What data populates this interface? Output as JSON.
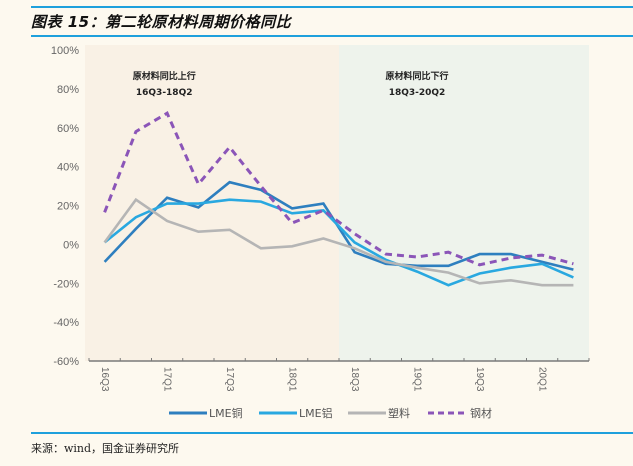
{
  "header": {
    "title": "图表 15：第二轮原材料周期价格同比"
  },
  "footer": {
    "source": "来源：wind，国金证券研究所"
  },
  "colors": {
    "rule": "#1ea0dc",
    "region_up": "#f9f1e5",
    "region_down": "#eef3ec",
    "copper": "#2e7fbf",
    "aluminum": "#29a8e0",
    "plastic": "#b5b5b5",
    "steel": "#8b55b8"
  },
  "chart_data": {
    "type": "line",
    "title": "第二轮原材料周期价格同比",
    "xlabel": "",
    "ylabel": "",
    "ylim": [
      -60,
      100
    ],
    "yticks": [
      100,
      80,
      60,
      40,
      20,
      0,
      -20,
      -40,
      -60
    ],
    "ytick_labels": [
      "100%",
      "80%",
      "60%",
      "40%",
      "20%",
      "0%",
      "-20%",
      "-40%",
      "-60%"
    ],
    "categories": [
      "16Q3",
      "16Q4",
      "17Q1",
      "17Q2",
      "17Q3",
      "17Q4",
      "18Q1",
      "18Q2",
      "18Q3",
      "18Q4",
      "19Q1",
      "19Q2",
      "19Q3",
      "19Q4",
      "20Q1",
      "20Q2"
    ],
    "xtick_labels": [
      "16Q3",
      "17Q1",
      "17Q3",
      "18Q1",
      "18Q3",
      "19Q1",
      "19Q3",
      "20Q1"
    ],
    "grid": false,
    "legend_position": "bottom",
    "series": [
      {
        "name": "LME铜",
        "key": "copper",
        "style": "solid",
        "values": [
          -9,
          8,
          24,
          19,
          32,
          28,
          18.5,
          21,
          -4,
          -10,
          -11,
          -11,
          -5,
          -5,
          -9,
          -13
        ]
      },
      {
        "name": "LME铝",
        "key": "aluminum",
        "style": "solid",
        "values": [
          1,
          14,
          21,
          21,
          23,
          22,
          16,
          17.5,
          1,
          -8,
          -14,
          -21,
          -15,
          -12,
          -10,
          -17
        ]
      },
      {
        "name": "塑料",
        "key": "plastic",
        "style": "solid",
        "values": [
          1,
          23,
          12,
          6.5,
          7.5,
          -2,
          -1,
          3,
          -2,
          -9,
          -12,
          -14.5,
          -20,
          -18.5,
          -21,
          -21
        ]
      },
      {
        "name": "钢材",
        "key": "steel",
        "style": "dashed",
        "values": [
          16.5,
          58,
          67.5,
          31,
          50,
          30,
          11,
          17.5,
          5.5,
          -5,
          -6.5,
          -4,
          -10.5,
          -7,
          -5.5,
          -10
        ]
      }
    ],
    "regions": [
      {
        "label_line1": "原材料同比上行",
        "label_line2": "16Q3-18Q2",
        "from": "16Q3",
        "to": "18Q2",
        "key": "region_up"
      },
      {
        "label_line1": "原材料同比下行",
        "label_line2": "18Q3-20Q2",
        "from": "18Q3",
        "to": "20Q2",
        "key": "region_down"
      }
    ]
  }
}
